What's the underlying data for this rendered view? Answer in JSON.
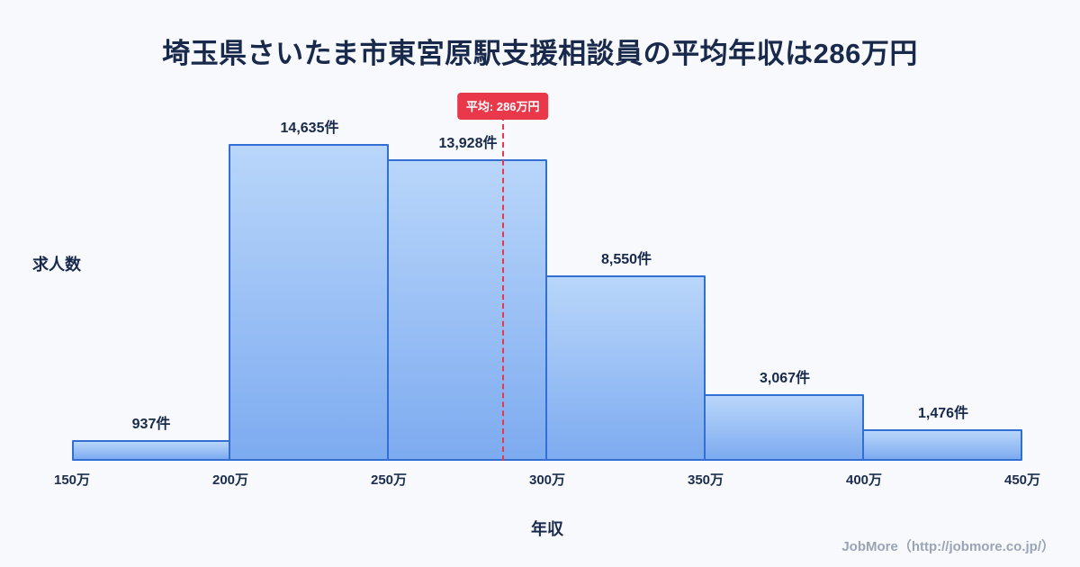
{
  "title": "埼玉県さいたま市東宮原駅支援相談員の平均年収は286万円",
  "chart_data": {
    "type": "bar",
    "title": "埼玉県さいたま市東宮原駅支援相談員の平均年収は286万円",
    "xlabel": "年収",
    "ylabel": "求人数",
    "x_tick_labels": [
      "150万",
      "200万",
      "250万",
      "300万",
      "350万",
      "400万",
      "450万"
    ],
    "bin_edges": [
      150,
      200,
      250,
      300,
      350,
      400,
      450
    ],
    "categories": [
      "150万-200万",
      "200万-250万",
      "250万-300万",
      "300万-350万",
      "350万-400万",
      "400万-450万"
    ],
    "values": [
      937,
      14635,
      13928,
      8550,
      3067,
      1476
    ],
    "value_labels": [
      "937件",
      "14,635件",
      "13,928件",
      "8,550件",
      "3,067件",
      "1,476件"
    ],
    "x_range": [
      150,
      450
    ],
    "ylim": [
      0,
      14635
    ],
    "grid": "off",
    "average": {
      "value": 286,
      "label": "平均: 286万円"
    }
  },
  "colors": {
    "background": "#f7f9fd",
    "bar_border": "#3170d2",
    "bar_fill_top": "#b9d6fa",
    "bar_fill_bottom": "#7dabf0",
    "average_line": "#e8384a",
    "title_text": "#18294b",
    "footer_text": "#9aa4b5"
  },
  "footer": {
    "credit": "JobMore（http://jobmore.co.jp/）"
  }
}
